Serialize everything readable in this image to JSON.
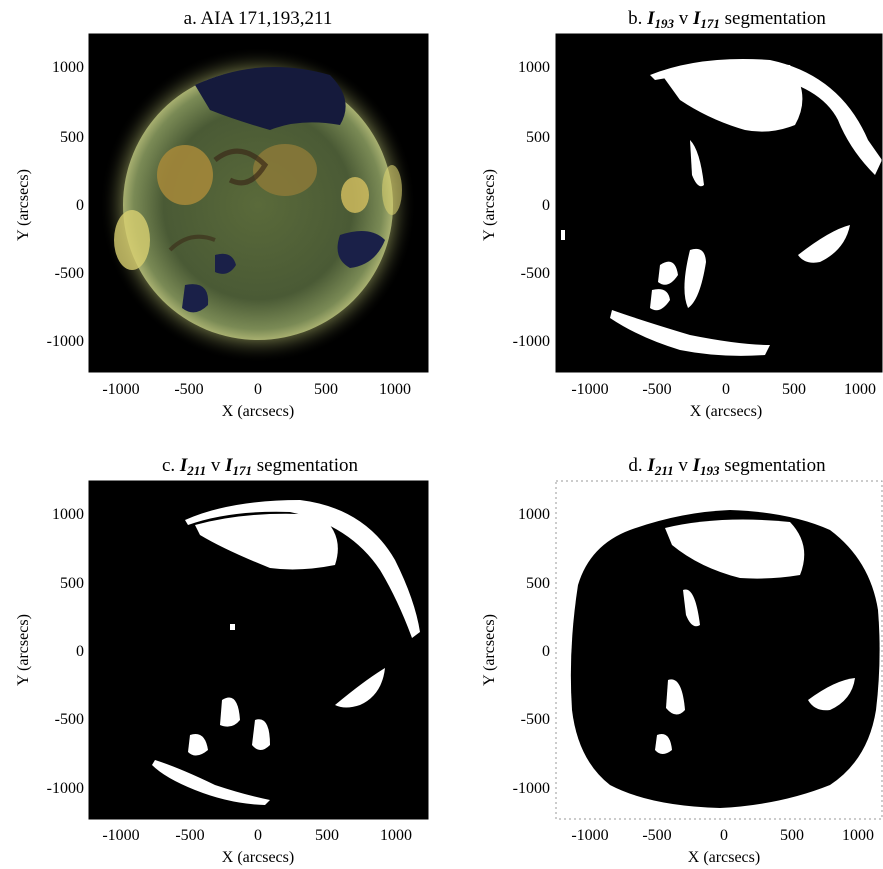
{
  "figure": {
    "panels": [
      {
        "id": "a",
        "title": "a. AIA 171,193,211",
        "xlabel": "X (arcsecs)",
        "ylabel": "Y (arcsecs)",
        "xticks": [
          "-1000",
          "-500",
          "0",
          "500",
          "1000"
        ],
        "yticks": [
          "1000",
          "500",
          "0",
          "-500",
          "-1000"
        ],
        "image": "composite EUV image of the solar disk",
        "colors": {
          "bg": "#000000",
          "disk": "#4f6136",
          "limb": "#c8c878",
          "hole": "#151a3c",
          "active": "#b8963e"
        }
      },
      {
        "id": "b",
        "title_prefix": "b.",
        "title_i1": "I",
        "title_s1": "193",
        "title_mid": "v",
        "title_i2": "I",
        "title_s2": "171",
        "title_suffix": "segmentation",
        "xlabel": "X (arcsecs)",
        "ylabel": "Y (arcsecs)",
        "xticks": [
          "-1000",
          "-500",
          "0",
          "500",
          "1000"
        ],
        "yticks": [
          "1000",
          "500",
          "0",
          "-500",
          "-1000"
        ],
        "image": "binary segmentation mask"
      },
      {
        "id": "c",
        "title_prefix": "c.",
        "title_i1": "I",
        "title_s1": "211",
        "title_mid": "v",
        "title_i2": "I",
        "title_s2": "171",
        "title_suffix": "segmentation",
        "xlabel": "X (arcsecs)",
        "ylabel": "Y (arcsecs)",
        "xticks": [
          "-1000",
          "-500",
          "0",
          "500",
          "1000"
        ],
        "yticks": [
          "1000",
          "500",
          "0",
          "-500",
          "-1000"
        ],
        "image": "binary segmentation mask"
      },
      {
        "id": "d",
        "title_prefix": "d.",
        "title_i1": "I",
        "title_s1": "211",
        "title_mid": "v",
        "title_i2": "I",
        "title_s2": "193",
        "title_suffix": "segmentation",
        "xlabel": "X (arcsecs)",
        "ylabel": "Y (arcsecs)",
        "xticks": [
          "-1000",
          "-500",
          "0",
          "500",
          "1000"
        ],
        "yticks": [
          "1000",
          "500",
          "0",
          "-500",
          "-1000"
        ],
        "image": "binary segmentation mask"
      }
    ]
  }
}
